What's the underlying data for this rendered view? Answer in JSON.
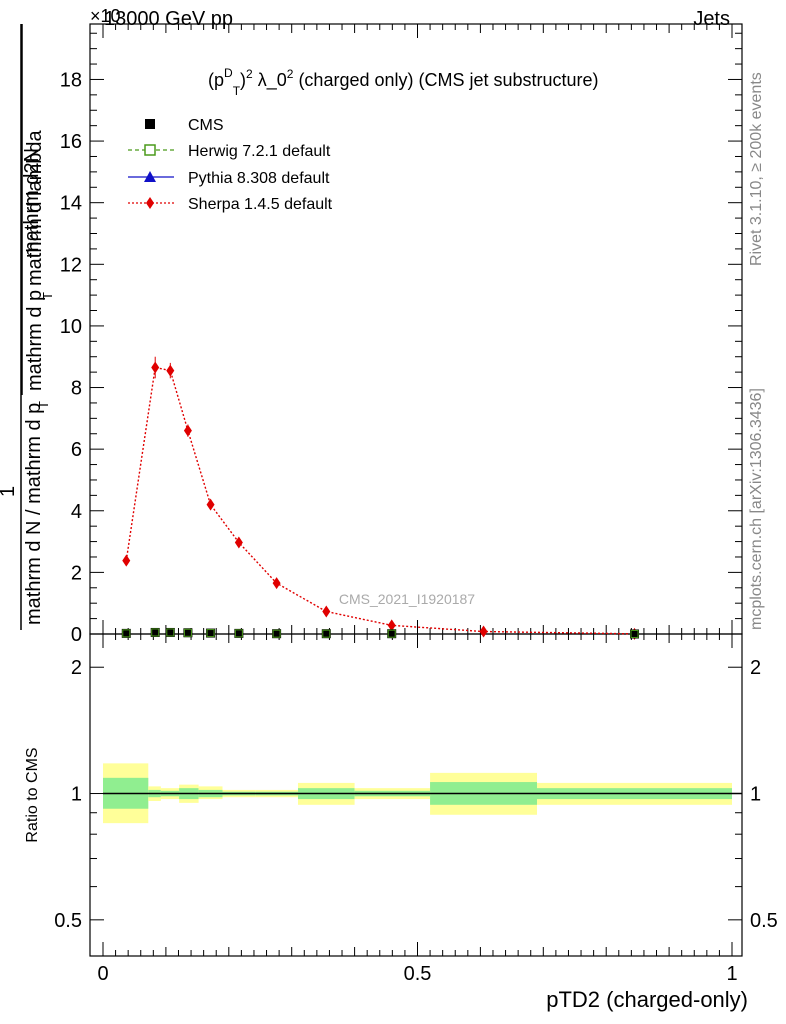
{
  "header": {
    "left": "13000 GeV pp",
    "right": "Jets",
    "exponent_mark": "×10"
  },
  "side_labels": {
    "rivet": "Rivet 3.1.10, ≥ 200k events",
    "mcplots": "mcplots.cern.ch [arXiv:1306.3436]"
  },
  "watermark": "CMS_2021_I1920187",
  "colors": {
    "herwig": "#4a9a1a",
    "pythia": "#1010c8",
    "sherpa": "#e00000",
    "band_inner": "#90ee90",
    "band_outer": "#ffff99"
  },
  "chart_data": [
    {
      "type": "line",
      "panel": "main",
      "title": "(p_T^D)^2 λ_0^2 (charged only) (CMS jet substructure)",
      "title_parts": {
        "lead": "(p",
        "sub": "T",
        "sup": "D",
        "after": ")",
        "sup2": "2",
        "rest": " λ_0",
        "sup3": "2",
        "tail": " (charged only) (CMS jet substructure)"
      },
      "xlabel": "pTD2 (charged-only)",
      "ylabel_parts": {
        "numer": "1",
        "denom": "mathrm d N / mathrm d p",
        "denom_sub": "T",
        "numer2": "mathrm d",
        "numer2_sup": "2",
        "numer2_rest": "N",
        "denom2": "mathrm d p",
        "denom2_sub": "T",
        "denom2_rest": " mathrm d lambda"
      },
      "xlim": [
        0,
        1
      ],
      "ylim": [
        0,
        19.8
      ],
      "yticks": [
        0,
        2,
        4,
        6,
        8,
        10,
        12,
        14,
        16,
        18
      ],
      "ytick_labels": [
        "0",
        "2",
        "4",
        "6",
        "8",
        "10",
        "12",
        "14",
        "16",
        "18"
      ],
      "legend": [
        "CMS",
        "Herwig 7.2.1 default",
        "Pythia 8.308 default",
        "Sherpa 1.4.5 default"
      ],
      "series": [
        {
          "name": "CMS",
          "x": [
            0.037,
            0.083,
            0.107,
            0.135,
            0.171,
            0.216,
            0.276,
            0.355,
            0.459,
            0.845
          ],
          "values": [
            0.02,
            0.05,
            0.05,
            0.04,
            0.03,
            0.02,
            0.01,
            0.01,
            0.01,
            0.001
          ]
        },
        {
          "name": "Sherpa 1.4.5 default",
          "x": [
            0.037,
            0.083,
            0.107,
            0.135,
            0.171,
            0.216,
            0.276,
            0.355,
            0.459,
            0.605,
            0.845
          ],
          "values": [
            2.38,
            8.65,
            8.55,
            6.6,
            4.2,
            2.97,
            1.65,
            0.73,
            0.28,
            0.08,
            0.005
          ],
          "errors": [
            0.15,
            0.35,
            0.25,
            0.2,
            0.12,
            0.1,
            0.08,
            0.05,
            0.03,
            0.02,
            0.005
          ]
        }
      ]
    },
    {
      "type": "area",
      "panel": "ratio",
      "ylabel": "Ratio to CMS",
      "xlim": [
        0,
        1
      ],
      "ylim": [
        0.41,
        2.4
      ],
      "yticks": [
        0.5,
        1,
        2
      ],
      "ytick_labels": [
        "0.5",
        "1",
        "2"
      ],
      "xticks": [
        0,
        0.5,
        1
      ],
      "xtick_labels": [
        "0",
        "0.5",
        "1"
      ],
      "bins": [
        {
          "lo": 0.0,
          "hi": 0.072,
          "inner": [
            0.92,
            1.09
          ],
          "outer": [
            0.85,
            1.18
          ]
        },
        {
          "lo": 0.072,
          "hi": 0.092,
          "inner": [
            0.98,
            1.02
          ],
          "outer": [
            0.96,
            1.04
          ]
        },
        {
          "lo": 0.092,
          "hi": 0.121,
          "inner": [
            0.985,
            1.015
          ],
          "outer": [
            0.97,
            1.03
          ]
        },
        {
          "lo": 0.121,
          "hi": 0.152,
          "inner": [
            0.97,
            1.03
          ],
          "outer": [
            0.95,
            1.05
          ]
        },
        {
          "lo": 0.152,
          "hi": 0.19,
          "inner": [
            0.98,
            1.02
          ],
          "outer": [
            0.97,
            1.04
          ]
        },
        {
          "lo": 0.19,
          "hi": 0.243,
          "inner": [
            0.99,
            1.01
          ],
          "outer": [
            0.98,
            1.02
          ]
        },
        {
          "lo": 0.243,
          "hi": 0.31,
          "inner": [
            0.99,
            1.01
          ],
          "outer": [
            0.98,
            1.02
          ]
        },
        {
          "lo": 0.31,
          "hi": 0.4,
          "inner": [
            0.97,
            1.03
          ],
          "outer": [
            0.94,
            1.06
          ]
        },
        {
          "lo": 0.4,
          "hi": 0.52,
          "inner": [
            0.985,
            1.015
          ],
          "outer": [
            0.97,
            1.03
          ]
        },
        {
          "lo": 0.52,
          "hi": 0.69,
          "inner": [
            0.94,
            1.065
          ],
          "outer": [
            0.89,
            1.12
          ]
        },
        {
          "lo": 0.69,
          "hi": 1.0,
          "inner": [
            0.97,
            1.03
          ],
          "outer": [
            0.94,
            1.06
          ]
        }
      ]
    }
  ]
}
